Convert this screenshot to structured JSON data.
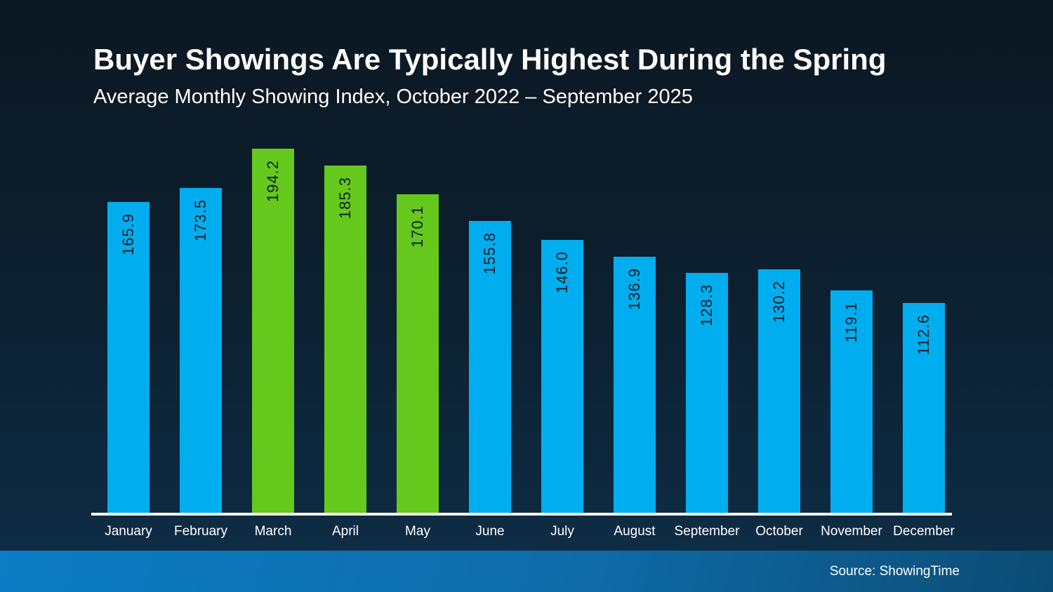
{
  "header": {
    "title": "Buyer Showings Are Typically Highest During the Spring",
    "subtitle": "Average Monthly Showing Index, October 2022 – September 2025"
  },
  "chart_data": {
    "type": "bar",
    "title": "Buyer Showings Are Typically Highest During the Spring",
    "subtitle": "Average Monthly Showing Index, October 2022 – September 2025",
    "categories": [
      "January",
      "February",
      "March",
      "April",
      "May",
      "June",
      "July",
      "August",
      "September",
      "October",
      "November",
      "December"
    ],
    "values": [
      165.9,
      173.5,
      194.2,
      185.3,
      170.1,
      155.8,
      146.0,
      136.9,
      128.3,
      130.2,
      119.1,
      112.6
    ],
    "value_labels": [
      "165.9",
      "173.5",
      "194.2",
      "185.3",
      "170.1",
      "155.8",
      "146.0",
      "136.9",
      "128.3",
      "130.2",
      "119.1",
      "112.6"
    ],
    "highlighted": [
      "March",
      "April",
      "May"
    ],
    "palette": {
      "bar_default": "#00AEEF",
      "bar_highlight": "#65C81C",
      "value_label_text": "#101c26",
      "axis_line": "#FFFFFF",
      "axis_label_text": "#FFFFFF"
    },
    "ylim": [
      0,
      200
    ],
    "baseline": 0,
    "grid": "off",
    "legend": "none",
    "value_label_orientation": "rotated-90-bottom-to-top",
    "xlabel": "",
    "ylabel": ""
  },
  "footer": {
    "source_label": "Source: ShowingTime"
  },
  "colors": {
    "background_top": "#0b1822",
    "background_bottom": "#0e2e48",
    "footer_gradient_left": "#0b7dc4",
    "footer_gradient_right": "#0b4c75",
    "title_text": "#FFFFFF"
  }
}
